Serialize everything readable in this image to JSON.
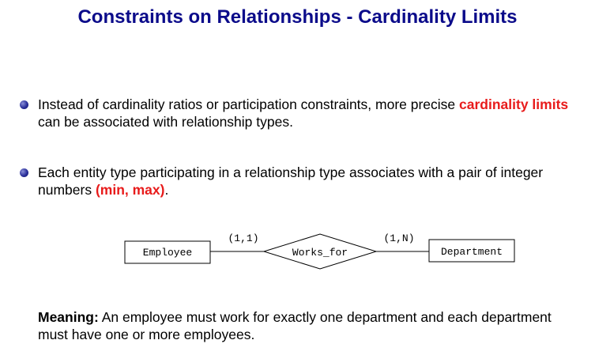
{
  "title": "Constraints on Relationships - Cardinality Limits",
  "bullets": [
    {
      "before": "Instead of cardinality ratios or participation constraints, more precise ",
      "highlight": "cardinality limits",
      "after": " can be associated with relationship types."
    },
    {
      "before": "Each entity type participating in a relationship type associates with a pair of integer numbers ",
      "highlight": "(min, max)",
      "after": "."
    }
  ],
  "diagram": {
    "left_entity": "Employee",
    "relationship": "Works_for",
    "right_entity": "Department",
    "left_cardinality": "(1,1)",
    "right_cardinality": "(1,N)"
  },
  "meaning": {
    "label": "Meaning:",
    "text": " An employee must work for exactly one department and each department must have one or more employees."
  },
  "colors": {
    "title": "#0b0b8a",
    "highlight": "#e81b1b",
    "bullet": "#2a2f9a"
  }
}
